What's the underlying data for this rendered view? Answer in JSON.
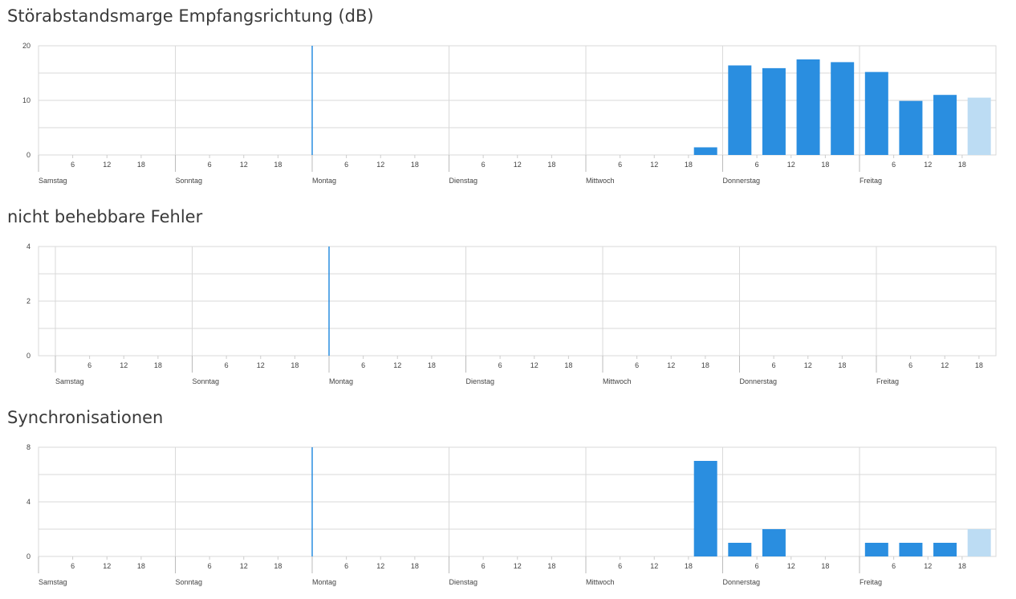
{
  "time_axis": {
    "days": [
      "Samstag",
      "Sonntag",
      "Montag",
      "Dienstag",
      "Mittwoch",
      "Donnerstag",
      "Freitag"
    ],
    "hour_ticks": [
      "6",
      "12",
      "18"
    ],
    "current_time_marker": "Montag 0:00"
  },
  "colors": {
    "bar": "#2a8ee0",
    "bar_current": "#bcdcf3",
    "marker": "#2a8ee0",
    "grid": "#d9d9d9"
  },
  "chart_data": [
    {
      "type": "bar",
      "title": "Störabstandsmarge Empfangsrichtung (dB)",
      "ylim": [
        0,
        20
      ],
      "yticks": [
        "0",
        "10",
        "20"
      ],
      "categories": [
        "Mittwoch 21:00",
        "Donnerstag 3:00",
        "Donnerstag 9:00",
        "Donnerstag 15:00",
        "Donnerstag 21:00",
        "Freitag 3:00",
        "Freitag 9:00",
        "Freitag 15:00",
        "Freitag 21:00"
      ],
      "values": [
        1.4,
        16.4,
        15.9,
        17.5,
        17.0,
        15.2,
        9.9,
        11.0,
        10.5
      ],
      "current_last": true
    },
    {
      "type": "bar",
      "title": "nicht behebbare Fehler",
      "ylim": [
        0,
        4
      ],
      "yticks": [
        "0",
        "2",
        "4"
      ],
      "categories": [],
      "values": [],
      "current_last": false
    },
    {
      "type": "bar",
      "title": "Synchronisationen",
      "ylim": [
        0,
        8
      ],
      "yticks": [
        "0",
        "4",
        "8"
      ],
      "categories": [
        "Mittwoch 21:00",
        "Donnerstag 3:00",
        "Donnerstag 9:00",
        "Freitag 3:00",
        "Freitag 9:00",
        "Freitag 15:00",
        "Freitag 21:00"
      ],
      "values": [
        7,
        1,
        2,
        1,
        1,
        1,
        2
      ],
      "current_last": true
    }
  ]
}
